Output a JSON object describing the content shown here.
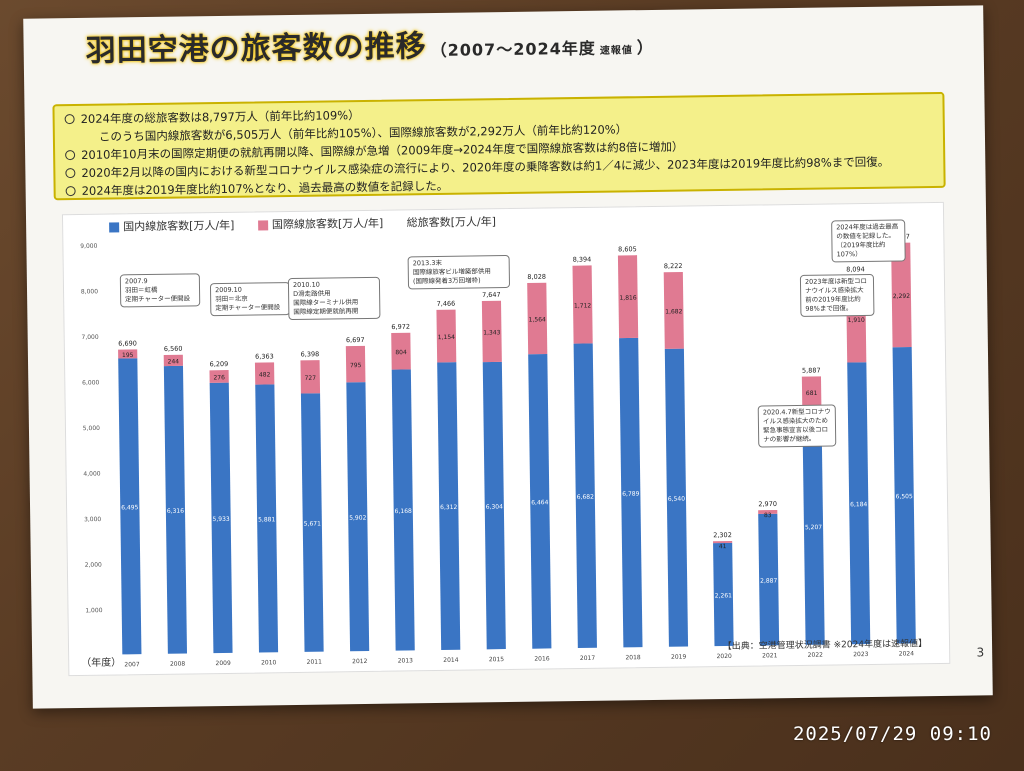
{
  "page": {
    "title_main": "羽田空港の旅客数の推移",
    "title_range": "（2007～2024年度",
    "title_note": "速報値",
    "title_close": "）",
    "page_number": "3",
    "timestamp": "2025/07/29  09:10"
  },
  "summary": [
    "2024年度の総旅客数は8,797万人（前年比約109%）",
    "このうち国内線旅客数が6,505万人（前年比約105%）、国際線旅客数が2,292万人（前年比約120%）",
    "2010年10月末の国際定期便の就航再開以降、国際線が急増（2009年度→2024年度で国際線旅客数は約8倍に増加）",
    "2020年2月以降の国内における新型コロナウイルス感染症の流行により、2020年度の乗降客数は約1／4に減少、2023年度は2019年度比約98%まで回復。",
    "2024年度は2019年度比約107%となり、過去最高の数値を記録した。"
  ],
  "legend": {
    "domestic": "国内線旅客数[万人/年]",
    "international": "国際線旅客数[万人/年]",
    "total": "総旅客数[万人/年]"
  },
  "source": "【出典：空港管理状況調書 ※2024年度は速報値】",
  "year_axis_label": "（年度）",
  "callouts": {
    "c2007": "2007.9\n羽田＝虹橋\n定期チャーター便開設",
    "c2009": "2009.10\n羽田＝北京\n定期チャーター便開設",
    "c2010": "2010.10\nD滑走路供用\n国際線ターミナル供用\n国際線定期便就航再開",
    "c2013": "2013.3末\n国際線旅客ビル増築部供用\n(国際線発着3万回増枠)",
    "c2020": "2020.4.7新型コロナウイルス感染拡大のため緊急事態宣言以後コロナの影響が継続。",
    "c2023": "2023年度は新型コロナウイルス感染拡大前の2019年度比約98%まで回復。",
    "c2024": "2024年度は過去最高の数値を記録した。（2019年度比約107%）"
  },
  "colors": {
    "domestic": "#3a75c4",
    "international": "#e07a92",
    "title_glow": "#f2c200",
    "summary_bg": "#f4f08a"
  },
  "chart_data": {
    "type": "bar",
    "stacked": true,
    "categories": [
      "2007",
      "2008",
      "2009",
      "2010",
      "2011",
      "2012",
      "2013",
      "2014",
      "2015",
      "2016",
      "2017",
      "2018",
      "2019",
      "2020",
      "2021",
      "2022",
      "2023",
      "2024"
    ],
    "series": [
      {
        "name": "国内線旅客数[万人/年]",
        "values": [
          6495,
          6316,
          5933,
          5881,
          5671,
          5902,
          6168,
          6312,
          6304,
          6464,
          6682,
          6789,
          6540,
          2261,
          2887,
          5207,
          6184,
          6505
        ]
      },
      {
        "name": "国際線旅客数[万人/年]",
        "values": [
          195,
          244,
          276,
          482,
          727,
          795,
          804,
          1154,
          1343,
          1564,
          1712,
          1816,
          1682,
          41,
          83,
          681,
          1910,
          2292
        ]
      }
    ],
    "totals": [
      6690,
      6560,
      6209,
      6363,
      6398,
      6697,
      6972,
      7466,
      7647,
      8028,
      8394,
      8605,
      8222,
      2302,
      2970,
      5887,
      8094,
      8797
    ],
    "y_ticks": [
      "1,000",
      "2,000",
      "3,000",
      "4,000",
      "5,000",
      "6,000",
      "7,000",
      "8,000",
      "9,000"
    ],
    "ylim": [
      0,
      9000
    ]
  }
}
